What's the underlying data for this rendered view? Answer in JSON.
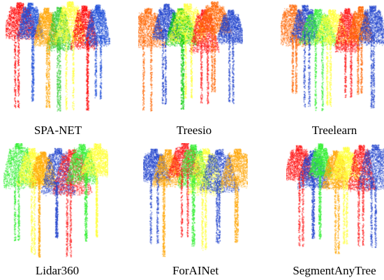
{
  "figure": {
    "panels": [
      {
        "label": "SPA-NET",
        "colors": [
          "#ff0000",
          "#1f4fd8",
          "#ffa500",
          "#33cc33",
          "#ffff33"
        ]
      },
      {
        "label": "Treesio",
        "colors": [
          "#ff6600",
          "#2244cc",
          "#00cc00",
          "#ffff33",
          "#ff1a1a"
        ]
      },
      {
        "label": "Treelearn",
        "colors": [
          "#ff6600",
          "#2244cc",
          "#33ee33",
          "#ffff33",
          "#ff1a1a"
        ]
      },
      {
        "label": "Lidar360",
        "colors": [
          "#33ee33",
          "#ffff33",
          "#ffa500",
          "#2244cc",
          "#ff1a1a"
        ]
      },
      {
        "label": "ForAINet",
        "colors": [
          "#2244cc",
          "#ffa500",
          "#ff1a1a",
          "#33ee33",
          "#ffff33"
        ]
      },
      {
        "label": "SegmentAnyTree",
        "colors": [
          "#ff1a1a",
          "#2244cc",
          "#33ee33",
          "#ffa500",
          "#ffff33"
        ]
      }
    ]
  }
}
